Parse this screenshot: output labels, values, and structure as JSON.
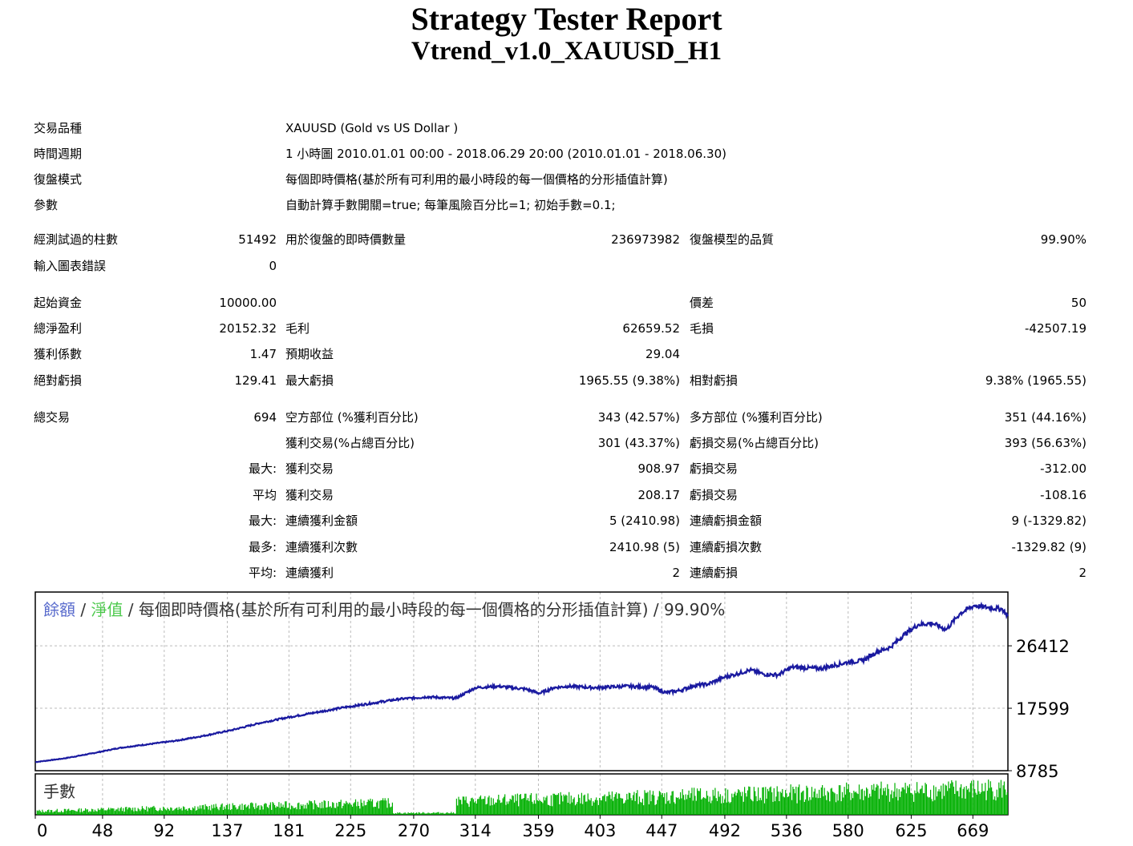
{
  "title": "Strategy Tester Report",
  "subtitle": "Vtrend_v1.0_XAUUSD_H1",
  "info": {
    "symbol_label": "交易品種",
    "symbol": "XAUUSD (Gold vs US Dollar )",
    "period_label": "時間週期",
    "period": "1 小時圖 2010.01.01 00:00 - 2018.06.29 20:00 (2010.01.01 - 2018.06.30)",
    "model_label": "復盤模式",
    "model": "每個即時價格(基於所有可利用的最小時段的每一個價格的分形插值計算)",
    "params_label": "參數",
    "params": "自動計算手數開關=true; 每筆風險百分比=1; 初始手數=0.1;"
  },
  "stats": {
    "bars_label": "經測試過的柱數",
    "bars": "51492",
    "ticks_label": "用於復盤的即時價數量",
    "ticks": "236973982",
    "quality_label": "復盤模型的品質",
    "quality": "99.90%",
    "errors_label": "輸入圖表錯誤",
    "errors": "0",
    "deposit_label": "起始資金",
    "deposit": "10000.00",
    "spread_label": "價差",
    "spread": "50",
    "net_label": "總淨盈利",
    "net": "20152.32",
    "gross_profit_label": "毛利",
    "gross_profit": "62659.52",
    "gross_loss_label": "毛損",
    "gross_loss": "-42507.19",
    "pf_label": "獲利係數",
    "pf": "1.47",
    "payoff_label": "預期收益",
    "payoff": "29.04",
    "abs_dd_label": "絕對虧損",
    "abs_dd": "129.41",
    "max_dd_label": "最大虧損",
    "max_dd": "1965.55 (9.38%)",
    "rel_dd_label": "相對虧損",
    "rel_dd": "9.38% (1965.55)"
  },
  "trades": {
    "total_label": "總交易",
    "total": "694",
    "short_label": "空方部位 (%獲利百分比)",
    "short": "343 (42.57%)",
    "long_label": "多方部位 (%獲利百分比)",
    "long": "351 (44.16%)",
    "win_label": "獲利交易(%占總百分比)",
    "win": "301 (43.37%)",
    "loss_label": "虧損交易(%占總百分比)",
    "loss": "393 (56.63%)",
    "r1_prefix": "最大:",
    "r1_a_label": "獲利交易",
    "r1_a": "908.97",
    "r1_b_label": "虧損交易",
    "r1_b": "-312.00",
    "r2_prefix": "平均",
    "r2_a_label": "獲利交易",
    "r2_a": "208.17",
    "r2_b_label": "虧損交易",
    "r2_b": "-108.16",
    "r3_prefix": "最大:",
    "r3_a_label": "連續獲利金額",
    "r3_a": "5 (2410.98)",
    "r3_b_label": "連續虧損金額",
    "r3_b": "9 (-1329.82)",
    "r4_prefix": "最多:",
    "r4_a_label": "連續獲利次數",
    "r4_a": "2410.98 (5)",
    "r4_b_label": "連續虧損次數",
    "r4_b": "-1329.82 (9)",
    "r5_prefix": "平均:",
    "r5_a_label": "連續獲利",
    "r5_a": "2",
    "r5_b_label": "連續虧損",
    "r5_b": "2"
  },
  "chart_data": {
    "type": "line",
    "legend": {
      "balance": "餘額",
      "sep1": " / ",
      "equity": "淨值",
      "sep2": " / ",
      "rest": "每個即時價格(基於所有可利用的最小時段的每一個價格的分形插值計算) / 99.90%"
    },
    "lots_label": "手數",
    "xlim": [
      0,
      694
    ],
    "ylim": [
      8785,
      34000
    ],
    "x_ticks": [
      0,
      48,
      92,
      137,
      181,
      225,
      270,
      314,
      359,
      403,
      447,
      492,
      536,
      580,
      625,
      669
    ],
    "y_ticks": [
      26412,
      17599,
      8785
    ],
    "grid": true,
    "balance_color": "#1a1aa0",
    "lots_color": "#00b000",
    "series": [
      {
        "x": [
          0,
          20,
          40,
          60,
          80,
          100,
          120,
          140,
          160,
          180,
          200,
          220,
          240,
          260,
          280,
          300,
          314,
          330,
          350,
          360,
          370,
          380,
          400,
          420,
          440,
          450,
          460,
          470,
          480,
          492,
          500,
          510,
          520,
          530,
          540,
          560,
          580,
          590,
          600,
          610,
          620,
          630,
          640,
          650,
          660,
          670,
          680,
          690,
          694
        ],
        "values": [
          10000,
          10500,
          11200,
          12000,
          12500,
          13000,
          13700,
          14500,
          15500,
          16300,
          17000,
          17700,
          18300,
          18900,
          19200,
          19000,
          20500,
          20700,
          20300,
          19700,
          20500,
          20700,
          20500,
          20700,
          20600,
          19800,
          20100,
          20800,
          21000,
          22000,
          22400,
          23000,
          22400,
          22300,
          23400,
          23200,
          24100,
          24300,
          25500,
          26200,
          28000,
          29400,
          29600,
          28700,
          31000,
          32100,
          31800,
          31600,
          30600
        ]
      }
    ]
  }
}
